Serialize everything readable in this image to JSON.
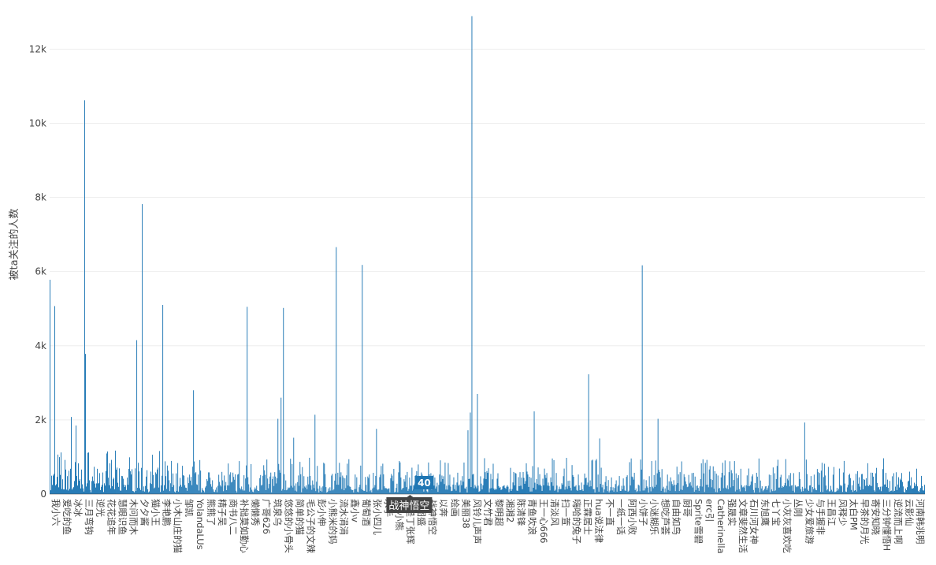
{
  "chart_data": {
    "type": "bar",
    "title": "",
    "xlabel": "",
    "ylabel": "被ta关注的人数",
    "ylim": [
      0,
      12900
    ],
    "yticks": [
      {
        "value": 0,
        "label": "0"
      },
      {
        "value": 2000,
        "label": "2k"
      },
      {
        "value": 4000,
        "label": "4k"
      },
      {
        "value": 6000,
        "label": "6k"
      },
      {
        "value": 8000,
        "label": "8k"
      },
      {
        "value": 10000,
        "label": "10k"
      },
      {
        "value": 12000,
        "label": "12k"
      }
    ],
    "bar_count": 1110,
    "bar_color": "#1f77b4",
    "grid": true,
    "categories": [
      "我小六",
      "爱吃的鱼",
      "冰冰",
      "三月弯钩",
      "逆光",
      "花花追年",
      "慧眼识鱼",
      "木问而木",
      "夕夕酱",
      "猫小王",
      "李艳鹏",
      "小木山庄的猫",
      "邹凯",
      "YolandaLUs",
      "熊熊了",
      "精子吴",
      "商书八二",
      "补拙莫如勤心",
      "懒懒秀",
      "广哥626",
      "筑泉乌",
      "悠悠的小骨头",
      "简单的猫",
      "毛公子的文辣",
      "彭小伸",
      "小熊米的妈",
      "流水涓涓",
      "鑫小v",
      "葡萄酒",
      "张小四儿",
      "水手",
      "leo小熊",
      "我是丁张辉",
      "张图盛",
      "战神悟空",
      "以奔",
      "绘画",
      "美丽38",
      "风铃儿声声",
      "文竹君",
      "黎明超",
      "湘湘2",
      "陈清锋",
      "青鱼吹浪",
      "王一心666",
      "清淡风",
      "扫一萱",
      "嗨哈的兔子",
      "正霖居士",
      "hua说法律",
      "不一直",
      "一纸一话",
      "阿西小败",
      "小饼子",
      "小迷糊乐",
      "想吃芦荟",
      "自由如鸟",
      "厨哥",
      "Sprite雪碧",
      "erc引",
      "Catherinella",
      "强晟实",
      "文章斐然生活",
      "石川河女神",
      "东旭鹰",
      "七丫宝",
      "小灰灰喜欢吃",
      "丛刚",
      "少女爱旅游",
      "与手握非",
      "王昌江",
      "风释少",
      "太白PM",
      "早茶的月光",
      "寄安知晓",
      "三分钟懂悟H",
      "逆流而上啊",
      "云影仙",
      "河南韩兆明"
    ],
    "spikes": [
      {
        "index": 0,
        "value": 5780
      },
      {
        "index": 6,
        "value": 5070
      },
      {
        "index": 27,
        "value": 2080
      },
      {
        "index": 33,
        "value": 1850
      },
      {
        "index": 44,
        "value": 10620
      },
      {
        "index": 45,
        "value": 3780
      },
      {
        "index": 110,
        "value": 4150
      },
      {
        "index": 117,
        "value": 7820
      },
      {
        "index": 143,
        "value": 5100
      },
      {
        "index": 182,
        "value": 2800
      },
      {
        "index": 250,
        "value": 5050
      },
      {
        "index": 289,
        "value": 2030
      },
      {
        "index": 293,
        "value": 2600
      },
      {
        "index": 296,
        "value": 5020
      },
      {
        "index": 309,
        "value": 1520
      },
      {
        "index": 336,
        "value": 2140
      },
      {
        "index": 363,
        "value": 6660
      },
      {
        "index": 396,
        "value": 6180
      },
      {
        "index": 414,
        "value": 1760
      },
      {
        "index": 530,
        "value": 1720
      },
      {
        "index": 533,
        "value": 2200
      },
      {
        "index": 535,
        "value": 12890
      },
      {
        "index": 542,
        "value": 2700
      },
      {
        "index": 614,
        "value": 2230
      },
      {
        "index": 683,
        "value": 3230
      },
      {
        "index": 697,
        "value": 1500
      },
      {
        "index": 751,
        "value": 6170
      },
      {
        "index": 771,
        "value": 2030
      },
      {
        "index": 957,
        "value": 1930
      }
    ],
    "tooltip": {
      "value": "40",
      "label": "战神悟空",
      "index": 460
    }
  }
}
